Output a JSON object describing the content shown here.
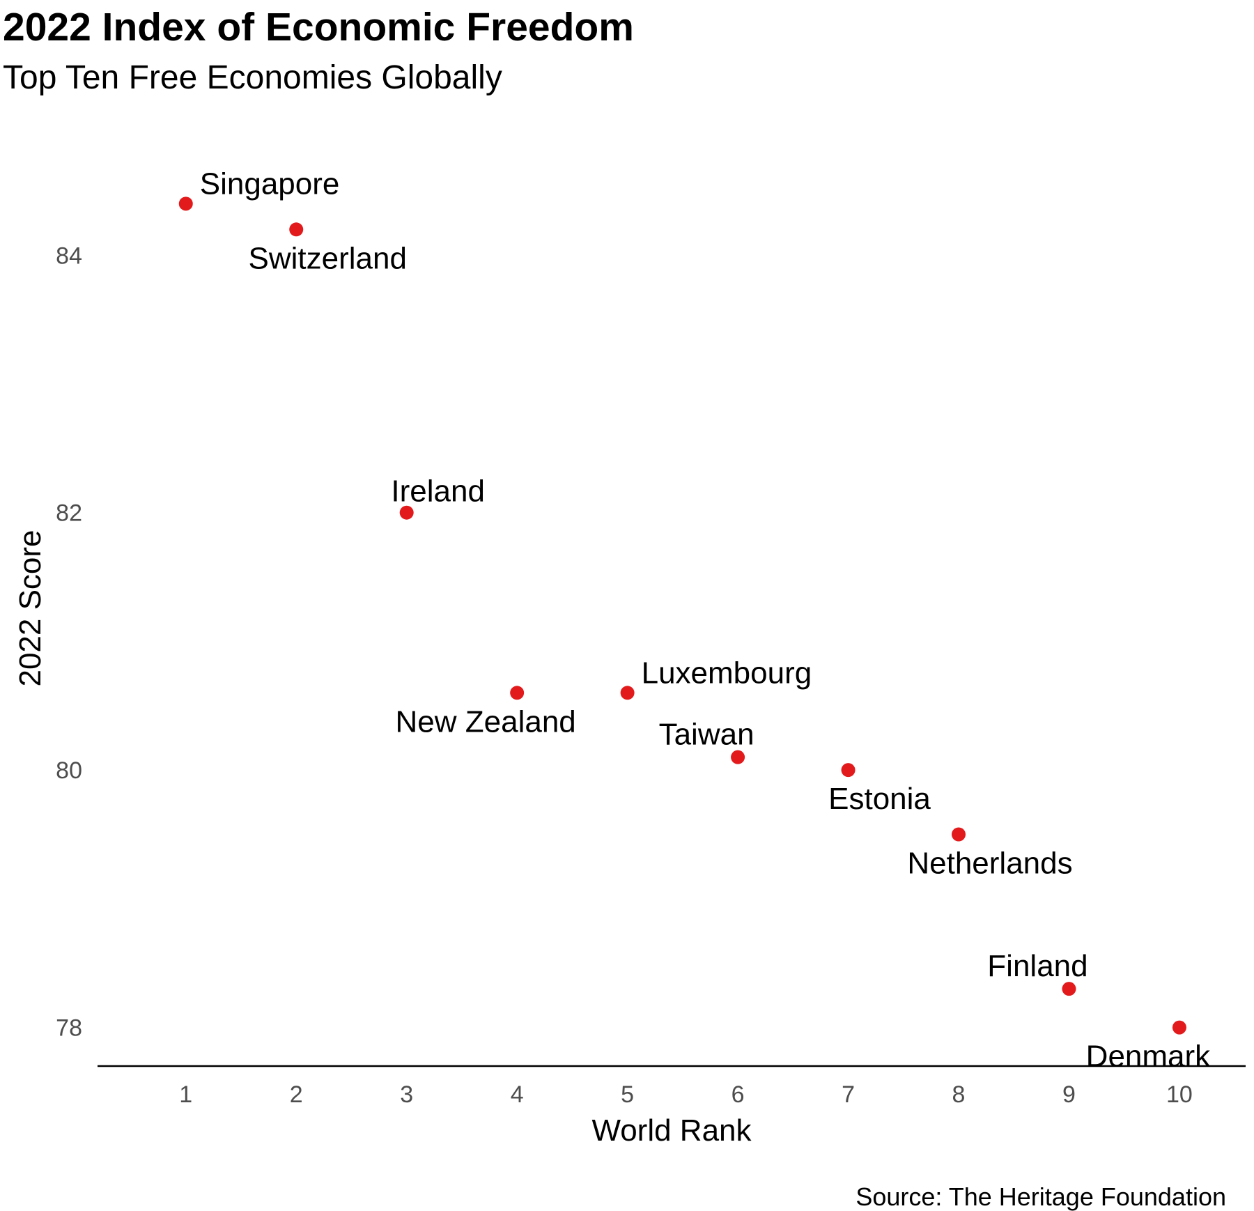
{
  "title": "2022 Index of Economic Freedom",
  "subtitle": "Top Ten Free Economies Globally",
  "caption": "Source: The Heritage Foundation",
  "colors": {
    "point": "#e31a1c",
    "axis_line": "#000000",
    "tick_text": "#4d4d4d"
  },
  "chart_data": {
    "type": "scatter",
    "title": "2022 Index of Economic Freedom",
    "subtitle": "Top Ten Free Economies Globally",
    "xlabel": "World Rank",
    "ylabel": "2022 Score",
    "xlim": [
      0.2,
      10.6
    ],
    "ylim": [
      77.7,
      84.9
    ],
    "x_ticks": [
      1,
      2,
      3,
      4,
      5,
      6,
      7,
      8,
      9,
      10
    ],
    "y_ticks": [
      78,
      80,
      82,
      84
    ],
    "grid": false,
    "legend": "none",
    "points": [
      {
        "label": "Singapore",
        "x": 1,
        "y": 84.4,
        "label_pos": "above-right"
      },
      {
        "label": "Switzerland",
        "x": 2,
        "y": 84.2,
        "label_pos": "below-right"
      },
      {
        "label": "Ireland",
        "x": 3,
        "y": 82.0,
        "label_pos": "above"
      },
      {
        "label": "New Zealand",
        "x": 4,
        "y": 80.6,
        "label_pos": "below-left"
      },
      {
        "label": "Luxembourg",
        "x": 5,
        "y": 80.6,
        "label_pos": "above-right"
      },
      {
        "label": "Taiwan",
        "x": 6,
        "y": 80.1,
        "label_pos": "above-left"
      },
      {
        "label": "Estonia",
        "x": 7,
        "y": 80.0,
        "label_pos": "below-right"
      },
      {
        "label": "Netherlands",
        "x": 8,
        "y": 79.5,
        "label_pos": "below-right"
      },
      {
        "label": "Finland",
        "x": 9,
        "y": 78.3,
        "label_pos": "above-left"
      },
      {
        "label": "Denmark",
        "x": 10,
        "y": 78.0,
        "label_pos": "below-left"
      }
    ]
  }
}
